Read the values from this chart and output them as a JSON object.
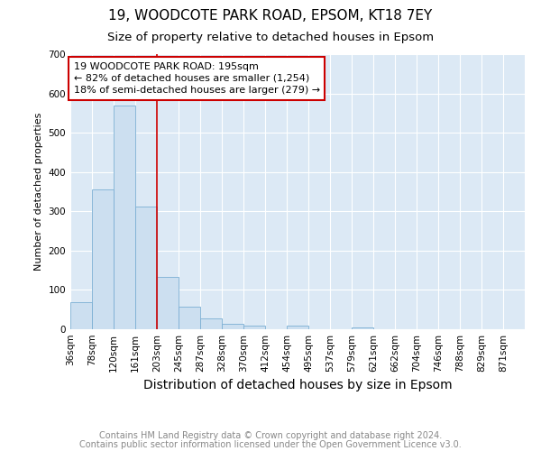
{
  "title": "19, WOODCOTE PARK ROAD, EPSOM, KT18 7EY",
  "subtitle": "Size of property relative to detached houses in Epsom",
  "xlabel": "Distribution of detached houses by size in Epsom",
  "ylabel": "Number of detached properties",
  "categories": [
    "36sqm",
    "78sqm",
    "120sqm",
    "161sqm",
    "203sqm",
    "245sqm",
    "287sqm",
    "328sqm",
    "370sqm",
    "412sqm",
    "454sqm",
    "495sqm",
    "537sqm",
    "579sqm",
    "621sqm",
    "662sqm",
    "704sqm",
    "746sqm",
    "788sqm",
    "829sqm",
    "871sqm"
  ],
  "values": [
    68,
    355,
    570,
    312,
    133,
    57,
    27,
    13,
    10,
    0,
    10,
    0,
    0,
    5,
    0,
    0,
    0,
    0,
    0,
    0,
    0
  ],
  "bar_color": "#ccdff0",
  "bar_edge_color": "#7bafd4",
  "background_color": "#dce9f5",
  "grid_color": "#ffffff",
  "vline_x_index": 4,
  "vline_color": "#cc0000",
  "annotation_text": "19 WOODCOTE PARK ROAD: 195sqm\n← 82% of detached houses are smaller (1,254)\n18% of semi-detached houses are larger (279) →",
  "annotation_box_color": "#ffffff",
  "annotation_box_edge": "#cc0000",
  "ylim": [
    0,
    700
  ],
  "yticks": [
    0,
    100,
    200,
    300,
    400,
    500,
    600,
    700
  ],
  "footer_line1": "Contains HM Land Registry data © Crown copyright and database right 2024.",
  "footer_line2": "Contains public sector information licensed under the Open Government Licence v3.0.",
  "title_fontsize": 11,
  "subtitle_fontsize": 9.5,
  "xlabel_fontsize": 10,
  "ylabel_fontsize": 8,
  "tick_fontsize": 7.5,
  "annotation_fontsize": 8,
  "footer_fontsize": 7
}
